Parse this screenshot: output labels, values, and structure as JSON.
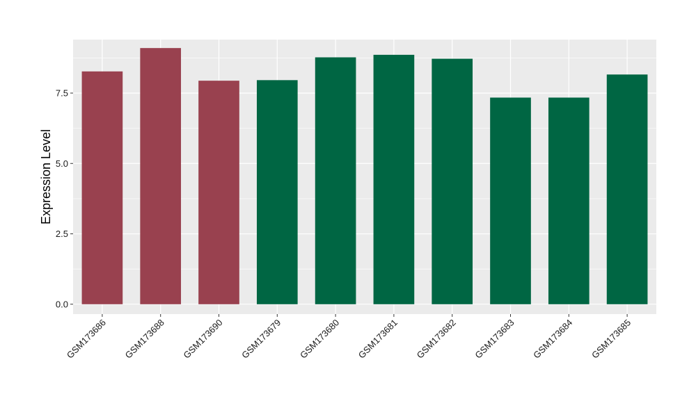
{
  "chart_data": {
    "type": "bar",
    "title": "",
    "xlabel": "",
    "ylabel": "Expression Level",
    "ylim": [
      -0.35,
      9.4
    ],
    "yticks": [
      0.0,
      2.5,
      5.0,
      7.5
    ],
    "ytick_labels": [
      "0.0",
      "2.5",
      "5.0",
      "7.5"
    ],
    "grid": true,
    "legend": "none",
    "panel_color": "#ebebeb",
    "grid_color": "#ffffff",
    "categories": [
      "GSM173686",
      "GSM173688",
      "GSM173690",
      "GSM173679",
      "GSM173680",
      "GSM173681",
      "GSM173682",
      "GSM173683",
      "GSM173684",
      "GSM173685"
    ],
    "values": [
      8.27,
      9.1,
      7.94,
      7.96,
      8.77,
      8.86,
      8.72,
      7.34,
      7.34,
      8.16
    ],
    "colors": [
      "#99414f",
      "#99414f",
      "#99414f",
      "#006643",
      "#006643",
      "#006643",
      "#006643",
      "#006643",
      "#006643",
      "#006643"
    ]
  }
}
